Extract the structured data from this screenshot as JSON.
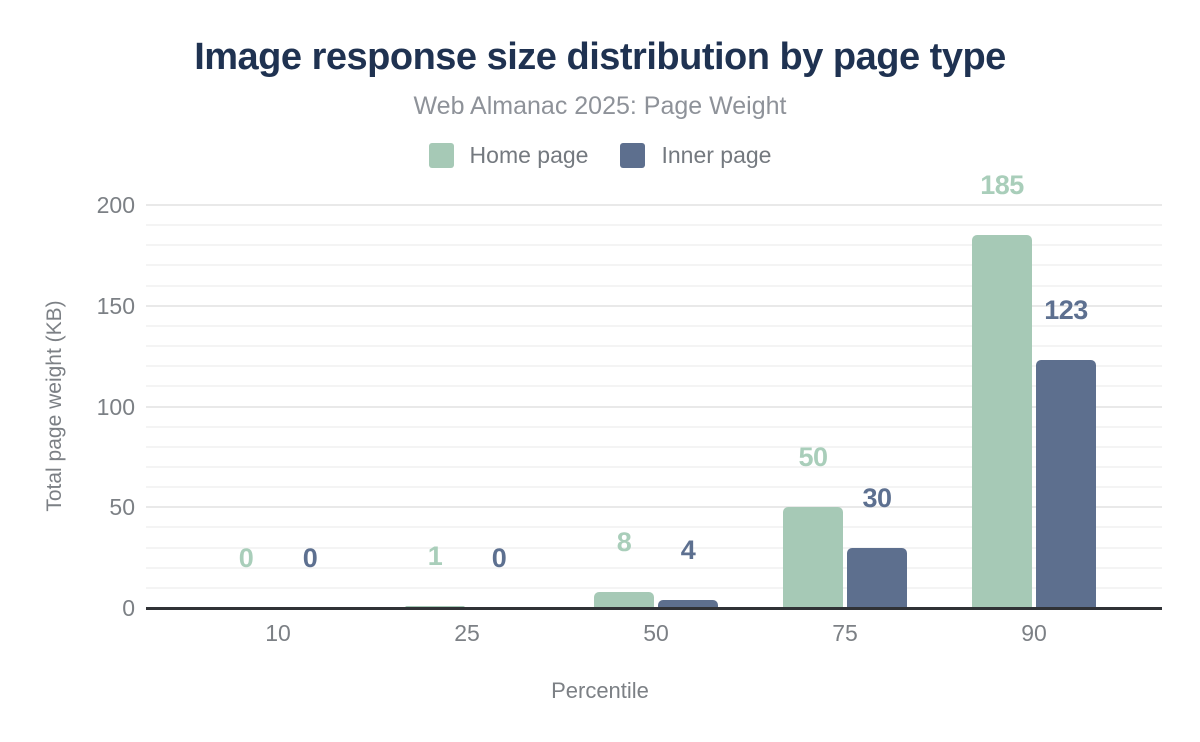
{
  "header": {
    "title": "Image response size distribution by page type",
    "subtitle": "Web Almanac 2025: Page Weight"
  },
  "legend": {
    "items": [
      {
        "label": "Home page",
        "color": "#a6c9b6"
      },
      {
        "label": "Inner page",
        "color": "#5d6f8e"
      }
    ]
  },
  "chart_data": {
    "type": "bar",
    "title": "Image response size distribution by page type",
    "subtitle": "Web Almanac 2025: Page Weight",
    "categories": [
      "10",
      "25",
      "50",
      "75",
      "90"
    ],
    "series": [
      {
        "name": "Home page",
        "color": "#a6c9b6",
        "label_color": "#a9ceba",
        "values": [
          0,
          1,
          8,
          50,
          185
        ]
      },
      {
        "name": "Inner page",
        "color": "#5d6f8e",
        "label_color": "#5d7090",
        "values": [
          0,
          0,
          4,
          30,
          123
        ]
      }
    ],
    "xlabel": "Percentile",
    "ylabel": "Total page weight (KB)",
    "ylim": [
      0,
      200
    ],
    "yticks": [
      0,
      50,
      100,
      150,
      200
    ],
    "grid": {
      "minor_step": 10,
      "major_step": 50,
      "orientation": "horizontal"
    },
    "legend_position": "top",
    "data_labels": true
  },
  "colors": {
    "title": "#1f3251",
    "subtitle": "#8e9299",
    "axis_text": "#7c8085",
    "axis_line": "#303236",
    "grid_minor": "#f4f4f4",
    "grid_major": "#e9e9e9",
    "background": "#ffffff"
  }
}
